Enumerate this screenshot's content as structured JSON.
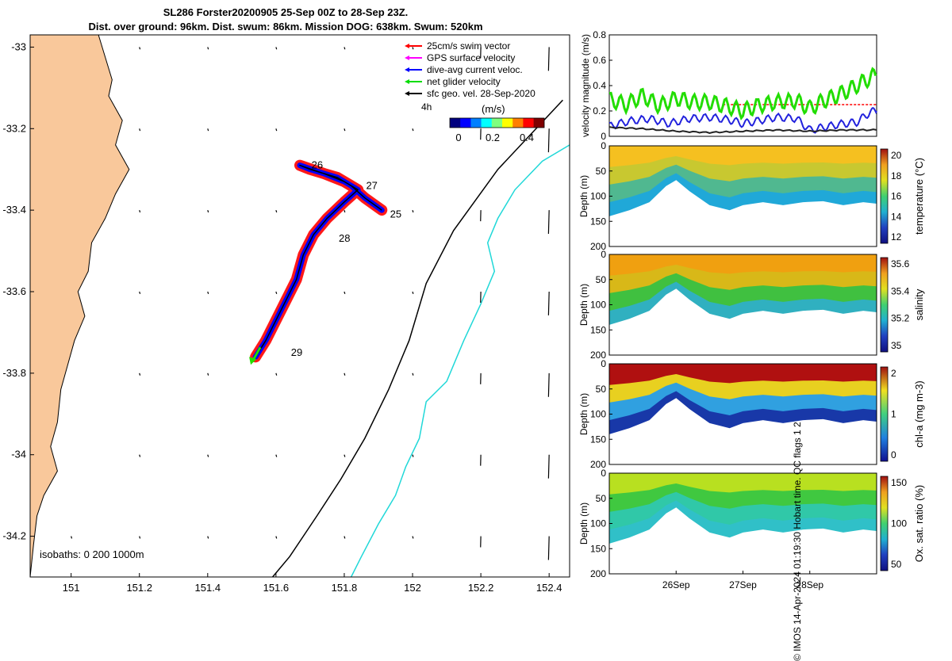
{
  "title": {
    "line1": "SL286 Forster20200905 25-Sep 00Z to 28-Sep 23Z.",
    "line2": "Dist. over ground: 96km. Dist. swum: 86km. Mission DOG: 638km. Swum: 520km"
  },
  "credit": "© IMOS 14-Apr-2024 01:19:30 Hobart time. QC flags 1  2",
  "map": {
    "xticks": [
      "151",
      "151.2",
      "151.4",
      "151.6",
      "151.8",
      "152",
      "152.2",
      "152.4"
    ],
    "yticks": [
      "-33",
      "-33.2",
      "-33.4",
      "-33.6",
      "-33.8",
      "-34",
      "-34.2"
    ],
    "xlim": [
      150.88,
      152.46
    ],
    "ylim": [
      -34.3,
      -32.97
    ],
    "isobaths_label": "isobaths: 0   200   1000m",
    "legend": [
      {
        "label": "25cm/s swim vector",
        "color": "#ff0000"
      },
      {
        "label": "GPS surface velocity",
        "color": "#ff00ff"
      },
      {
        "label": "dive-avg current veloc.",
        "color": "#0000ff"
      },
      {
        "label": "net glider velocity",
        "color": "#00dd00"
      },
      {
        "label": "sfc geo. vel. 28-Sep-2020",
        "color": "#000000"
      }
    ],
    "legend_note": "4h",
    "colorbar": {
      "label": "(m/s)",
      "ticks": [
        "0",
        "0.2",
        "0.4"
      ]
    },
    "day_labels": [
      {
        "text": "25",
        "lon": 151.92,
        "lat": -33.41
      },
      {
        "text": "26",
        "lon": 151.69,
        "lat": -33.29
      },
      {
        "text": "27",
        "lon": 151.85,
        "lat": -33.34
      },
      {
        "text": "28",
        "lon": 151.77,
        "lat": -33.47
      },
      {
        "text": "29",
        "lon": 151.63,
        "lat": -33.75
      }
    ],
    "track": [
      [
        151.91,
        -33.4
      ],
      [
        151.86,
        -33.37
      ],
      [
        151.82,
        -33.34
      ],
      [
        151.78,
        -33.32
      ],
      [
        151.74,
        -33.31
      ],
      [
        151.7,
        -33.3
      ],
      [
        151.67,
        -33.29
      ],
      [
        151.74,
        -33.31
      ],
      [
        151.8,
        -33.33
      ],
      [
        151.84,
        -33.35
      ],
      [
        151.8,
        -33.38
      ],
      [
        151.75,
        -33.42
      ],
      [
        151.71,
        -33.46
      ],
      [
        151.68,
        -33.51
      ],
      [
        151.66,
        -33.57
      ],
      [
        151.63,
        -33.62
      ],
      [
        151.6,
        -33.67
      ],
      [
        151.57,
        -33.72
      ],
      [
        151.54,
        -33.76
      ]
    ],
    "coast": [
      [
        151.0,
        -32.97
      ],
      [
        151.08,
        -32.97
      ],
      [
        151.12,
        -33.08
      ],
      [
        151.11,
        -33.12
      ],
      [
        151.15,
        -33.18
      ],
      [
        151.13,
        -33.24
      ],
      [
        151.17,
        -33.3
      ],
      [
        151.13,
        -33.36
      ],
      [
        151.1,
        -33.42
      ],
      [
        151.06,
        -33.48
      ],
      [
        151.05,
        -33.55
      ],
      [
        151.02,
        -33.6
      ],
      [
        151.04,
        -33.66
      ],
      [
        151.01,
        -33.72
      ],
      [
        150.99,
        -33.78
      ],
      [
        150.97,
        -33.84
      ],
      [
        150.96,
        -33.92
      ],
      [
        150.94,
        -33.98
      ],
      [
        150.96,
        -34.04
      ],
      [
        150.92,
        -34.1
      ],
      [
        150.9,
        -34.15
      ],
      [
        150.89,
        -34.22
      ],
      [
        150.88,
        -34.3
      ]
    ],
    "isobath_200": [
      [
        152.44,
        -33.13
      ],
      [
        152.25,
        -33.3
      ],
      [
        152.12,
        -33.45
      ],
      [
        152.04,
        -33.58
      ],
      [
        151.99,
        -33.72
      ],
      [
        151.93,
        -33.84
      ],
      [
        151.86,
        -33.96
      ],
      [
        151.79,
        -34.06
      ],
      [
        151.72,
        -34.15
      ],
      [
        151.64,
        -34.25
      ],
      [
        151.59,
        -34.3
      ]
    ],
    "isobath_1000": [
      [
        152.46,
        -33.24
      ],
      [
        152.38,
        -33.28
      ],
      [
        152.3,
        -33.35
      ],
      [
        152.25,
        -33.42
      ],
      [
        152.22,
        -33.48
      ],
      [
        152.24,
        -33.55
      ],
      [
        152.2,
        -33.63
      ],
      [
        152.15,
        -33.72
      ],
      [
        152.1,
        -33.82
      ],
      [
        152.04,
        -33.87
      ],
      [
        152.02,
        -33.96
      ],
      [
        151.98,
        -34.03
      ],
      [
        151.95,
        -34.1
      ],
      [
        151.9,
        -34.17
      ],
      [
        151.85,
        -34.25
      ],
      [
        151.82,
        -34.3
      ]
    ]
  },
  "velocity": {
    "ylabel": "velocity magnitude (m/s)",
    "yticks": [
      "0",
      "0.2",
      "0.4",
      "0.6",
      "0.8"
    ],
    "ylim": [
      0,
      0.8
    ],
    "xlim_days": [
      25.0,
      29.0
    ],
    "swim_ref": 0.25,
    "series": [
      {
        "name": "net glider velocity",
        "color": "#22dd00",
        "points": [
          [
            25.0,
            0.29
          ],
          [
            25.25,
            0.25
          ],
          [
            25.5,
            0.32
          ],
          [
            25.75,
            0.24
          ],
          [
            26.0,
            0.3
          ],
          [
            26.25,
            0.27
          ],
          [
            26.5,
            0.27
          ],
          [
            26.75,
            0.24
          ],
          [
            27.0,
            0.2
          ],
          [
            27.2,
            0.24
          ],
          [
            27.5,
            0.27
          ],
          [
            27.8,
            0.28
          ],
          [
            28.0,
            0.22
          ],
          [
            28.2,
            0.28
          ],
          [
            28.4,
            0.32
          ],
          [
            28.6,
            0.37
          ],
          [
            28.8,
            0.43
          ],
          [
            29.0,
            0.49
          ]
        ]
      },
      {
        "name": "dive-avg current veloc.",
        "color": "#2222dd",
        "points": [
          [
            25.0,
            0.08
          ],
          [
            25.3,
            0.12
          ],
          [
            25.6,
            0.14
          ],
          [
            25.9,
            0.1
          ],
          [
            26.2,
            0.14
          ],
          [
            26.5,
            0.15
          ],
          [
            26.8,
            0.13
          ],
          [
            27.0,
            0.1
          ],
          [
            27.2,
            0.12
          ],
          [
            27.5,
            0.15
          ],
          [
            27.8,
            0.14
          ],
          [
            28.0,
            0.05
          ],
          [
            28.2,
            0.07
          ],
          [
            28.5,
            0.1
          ],
          [
            28.7,
            0.11
          ],
          [
            28.9,
            0.19
          ],
          [
            29.0,
            0.2
          ]
        ]
      },
      {
        "name": "sfc geo. vel.",
        "color": "#222222",
        "points": [
          [
            25.0,
            0.07
          ],
          [
            25.5,
            0.06
          ],
          [
            26.0,
            0.04
          ],
          [
            26.5,
            0.03
          ],
          [
            27.0,
            0.04
          ],
          [
            27.5,
            0.05
          ],
          [
            28.0,
            0.04
          ],
          [
            28.5,
            0.05
          ],
          [
            29.0,
            0.05
          ]
        ]
      }
    ]
  },
  "sections": [
    {
      "ylabel": "Depth (m)",
      "clabel": "temperature (°C)",
      "cticks": [
        "20",
        "18",
        "16",
        "14",
        "12"
      ],
      "colors": [
        "#f5c020",
        "#c8c830",
        "#50b890",
        "#20a8d8"
      ]
    },
    {
      "ylabel": "Depth (m)",
      "clabel": "salinity",
      "cticks": [
        "35.6",
        "35.4",
        "35.2",
        "35"
      ],
      "colors": [
        "#f0a010",
        "#d8b818",
        "#40c040",
        "#30b0c0"
      ]
    },
    {
      "ylabel": "Depth (m)",
      "clabel": "chl-a (mg m-3)",
      "cticks": [
        "2",
        "1",
        "0"
      ],
      "colors": [
        "#b01010",
        "#e8d020",
        "#30a0e0",
        "#1838a8"
      ]
    },
    {
      "ylabel": "Depth (m)",
      "clabel": "Ox. sat. ratio (%)",
      "cticks": [
        "150",
        "100",
        "50"
      ],
      "colors": [
        "#b8e020",
        "#40c840",
        "#30c8a8",
        "#30c0c8"
      ]
    }
  ],
  "depth_ticks": [
    "0",
    "50",
    "100",
    "150",
    "200"
  ],
  "date_ticks": [
    "26Sep",
    "27Sep",
    "28Sep"
  ],
  "depth_profile": [
    [
      25.0,
      140
    ],
    [
      25.3,
      128
    ],
    [
      25.6,
      112
    ],
    [
      25.85,
      80
    ],
    [
      26.0,
      68
    ],
    [
      26.2,
      90
    ],
    [
      26.5,
      118
    ],
    [
      26.8,
      128
    ],
    [
      27.0,
      118
    ],
    [
      27.3,
      112
    ],
    [
      27.6,
      118
    ],
    [
      27.9,
      112
    ],
    [
      28.2,
      110
    ],
    [
      28.5,
      118
    ],
    [
      28.8,
      112
    ],
    [
      29.0,
      115
    ]
  ]
}
